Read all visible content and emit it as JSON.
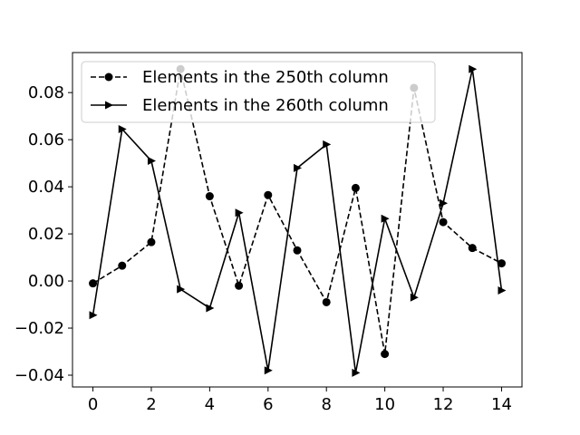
{
  "chart_data": {
    "type": "line",
    "title": "",
    "xlabel": "",
    "ylabel": "",
    "xlim": [
      -0.7,
      14.7
    ],
    "ylim": [
      -0.045,
      0.097
    ],
    "xticks": [
      0,
      2,
      4,
      6,
      8,
      10,
      12,
      14
    ],
    "xtick_labels": [
      "0",
      "2",
      "4",
      "6",
      "8",
      "10",
      "12",
      "14"
    ],
    "yticks": [
      -0.04,
      -0.02,
      0.0,
      0.02,
      0.04,
      0.06,
      0.08
    ],
    "ytick_labels": [
      "−0.04",
      "−0.02",
      "0.00",
      "0.02",
      "0.04",
      "0.06",
      "0.08"
    ],
    "grid": false,
    "legend_position": "top-left",
    "x": [
      0,
      1,
      2,
      3,
      4,
      5,
      6,
      7,
      8,
      9,
      10,
      11,
      12,
      13,
      14
    ],
    "series": [
      {
        "name": "Elements in the 250th column",
        "color": "#000000",
        "line_style": "dashed",
        "marker": "circle",
        "values": [
          -0.001,
          0.0065,
          0.0165,
          0.09,
          0.036,
          -0.002,
          0.0365,
          0.013,
          -0.009,
          0.0395,
          -0.031,
          0.082,
          0.025,
          0.014,
          0.0075
        ]
      },
      {
        "name": "Elements in the 260th column",
        "color": "#000000",
        "line_style": "solid",
        "marker": "triangle-right",
        "values": [
          -0.0145,
          0.0645,
          0.051,
          -0.0035,
          -0.0115,
          0.029,
          -0.038,
          0.048,
          0.058,
          -0.039,
          0.0265,
          -0.007,
          0.033,
          0.09,
          -0.004
        ]
      }
    ]
  }
}
